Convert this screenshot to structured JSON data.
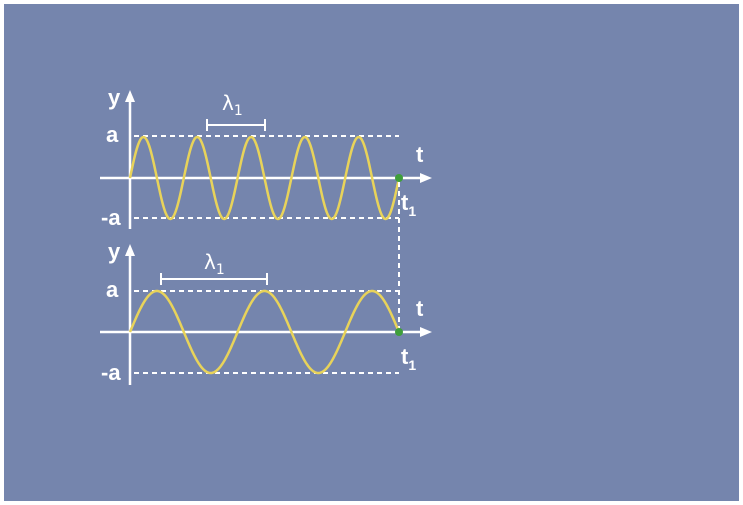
{
  "diagram": {
    "panel_top": {
      "y_axis_label": "y",
      "t_axis_label": "t",
      "amplitude_label": "a",
      "neg_amplitude_label": "-a",
      "wavelength_symbol": "λ",
      "wavelength_subscript": "1",
      "t1_symbol": "t",
      "t1_subscript": "1",
      "cycles_shown": 5
    },
    "panel_bottom": {
      "y_axis_label": "y",
      "t_axis_label": "t",
      "amplitude_label": "a",
      "neg_amplitude_label": "-a",
      "wavelength_symbol": "λ",
      "wavelength_subscript": "1",
      "t1_symbol": "t",
      "t1_subscript": "1",
      "cycles_shown": 2.5
    },
    "colors": {
      "background": "#7585ad",
      "wave": "#e8d35a",
      "axes": "#ffffff",
      "marker": "#3f9f3a"
    }
  }
}
